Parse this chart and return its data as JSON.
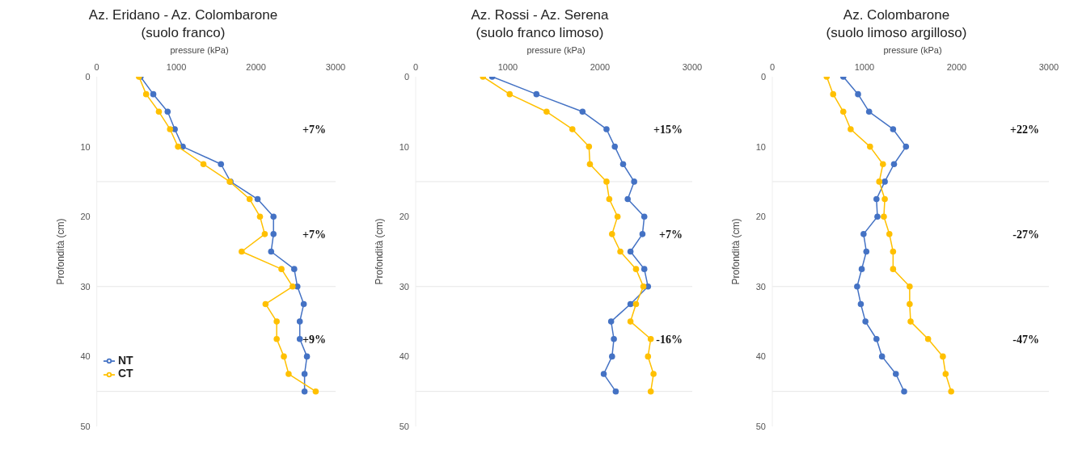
{
  "chart_data": [
    {
      "type": "line",
      "title": "Az. Eridano - Az. Colombarone",
      "subtitle": "(suolo franco)",
      "xlabel": "pressure (kPa)",
      "ylabel": "Profondità (cm)",
      "orientation": "horizontal",
      "x": [
        0,
        2.5,
        5,
        7.5,
        10,
        12.5,
        15,
        17.5,
        20,
        22.5,
        25,
        27.5,
        30,
        32.5,
        35,
        37.5,
        40,
        42.5,
        45
      ],
      "series": [
        {
          "name": "NT",
          "color": "#4472c4",
          "values": [
            550,
            710,
            890,
            980,
            1080,
            1560,
            1680,
            2020,
            2220,
            2220,
            2190,
            2480,
            2520,
            2600,
            2550,
            2550,
            2640,
            2610,
            2610
          ]
        },
        {
          "name": "CT",
          "color": "#ffc000",
          "values": [
            530,
            620,
            780,
            920,
            1020,
            1340,
            1670,
            1920,
            2050,
            2110,
            1820,
            2320,
            2460,
            2120,
            2260,
            2260,
            2350,
            2410,
            2750
          ]
        }
      ],
      "xlim": [
        0,
        3000
      ],
      "xticks": [
        0,
        1000,
        2000,
        3000
      ],
      "ylim": [
        50,
        0
      ],
      "yticks": [
        0,
        10,
        20,
        30,
        40,
        50
      ],
      "grid": false,
      "legend": "bottom left",
      "marker": "circle",
      "line_style": "solid",
      "ref_lines": [
        {
          "axis": "y",
          "value": 15,
          "color": "#e6e6e6"
        },
        {
          "axis": "y",
          "value": 30,
          "color": "#e6e6e6"
        },
        {
          "axis": "y",
          "value": 45,
          "color": "#e6e6e6"
        }
      ],
      "annotations": [
        "+7%",
        "+7%",
        "+9%"
      ]
    },
    {
      "type": "line",
      "title": "Az. Rossi - Az. Serena",
      "subtitle": "(suolo franco limoso)",
      "xlabel": "pressure (kPa)",
      "ylabel": "Profondità (cm)",
      "orientation": "horizontal",
      "x": [
        0,
        2.5,
        5,
        7.5,
        10,
        12.5,
        15,
        17.5,
        20,
        22.5,
        25,
        27.5,
        30,
        32.5,
        35,
        37.5,
        40,
        42.5,
        45
      ],
      "series": [
        {
          "color": "#4472c4",
          "values": [
            830,
            1310,
            1810,
            2070,
            2160,
            2250,
            2370,
            2300,
            2480,
            2460,
            2330,
            2480,
            2520,
            2330,
            2120,
            2150,
            2130,
            2040,
            2170
          ]
        },
        {
          "color": "#ffc000",
          "values": [
            730,
            1020,
            1420,
            1700,
            1880,
            1890,
            2070,
            2100,
            2190,
            2130,
            2220,
            2390,
            2470,
            2390,
            2330,
            2550,
            2520,
            2580,
            2550
          ]
        }
      ],
      "xlim": [
        0,
        3000
      ],
      "xticks": [
        0,
        1000,
        2000,
        3000
      ],
      "ylim": [
        50,
        0
      ],
      "yticks": [
        0,
        10,
        20,
        30,
        40,
        50
      ],
      "grid": false,
      "marker": "circle",
      "line_style": "solid",
      "ref_lines": [
        {
          "axis": "y",
          "value": 15,
          "color": "#e6e6e6"
        },
        {
          "axis": "y",
          "value": 30,
          "color": "#e6e6e6"
        },
        {
          "axis": "y",
          "value": 45,
          "color": "#e6e6e6"
        }
      ],
      "annotations": [
        "+15%",
        "+7%",
        "-16%"
      ]
    },
    {
      "type": "line",
      "title": "Az. Colombarone",
      "subtitle": "(suolo limoso argilloso)",
      "xlabel": "pressure (kPa)",
      "ylabel": "Profondità (cm)",
      "orientation": "horizontal",
      "x": [
        0,
        2.5,
        5,
        7.5,
        10,
        12.5,
        15,
        17.5,
        20,
        22.5,
        25,
        27.5,
        30,
        32.5,
        35,
        37.5,
        40,
        42.5,
        45
      ],
      "series": [
        {
          "color": "#4472c4",
          "values": [
            770,
            930,
            1050,
            1310,
            1450,
            1320,
            1220,
            1130,
            1140,
            990,
            1020,
            970,
            920,
            960,
            1010,
            1130,
            1190,
            1340,
            1430
          ]
        },
        {
          "color": "#ffc000",
          "values": [
            590,
            660,
            770,
            850,
            1060,
            1200,
            1160,
            1220,
            1210,
            1270,
            1310,
            1310,
            1490,
            1490,
            1500,
            1690,
            1850,
            1880,
            1940
          ]
        }
      ],
      "xlim": [
        0,
        3000
      ],
      "xticks": [
        0,
        1000,
        2000,
        3000
      ],
      "ylim": [
        50,
        0
      ],
      "yticks": [
        0,
        10,
        20,
        30,
        40,
        50
      ],
      "grid": false,
      "marker": "circle",
      "line_style": "solid",
      "ref_lines": [
        {
          "axis": "y",
          "value": 15,
          "color": "#e6e6e6"
        },
        {
          "axis": "y",
          "value": 30,
          "color": "#e6e6e6"
        },
        {
          "axis": "y",
          "value": 45,
          "color": "#e6e6e6"
        }
      ],
      "annotations": [
        "+22%",
        "-27%",
        "-47%"
      ]
    }
  ]
}
